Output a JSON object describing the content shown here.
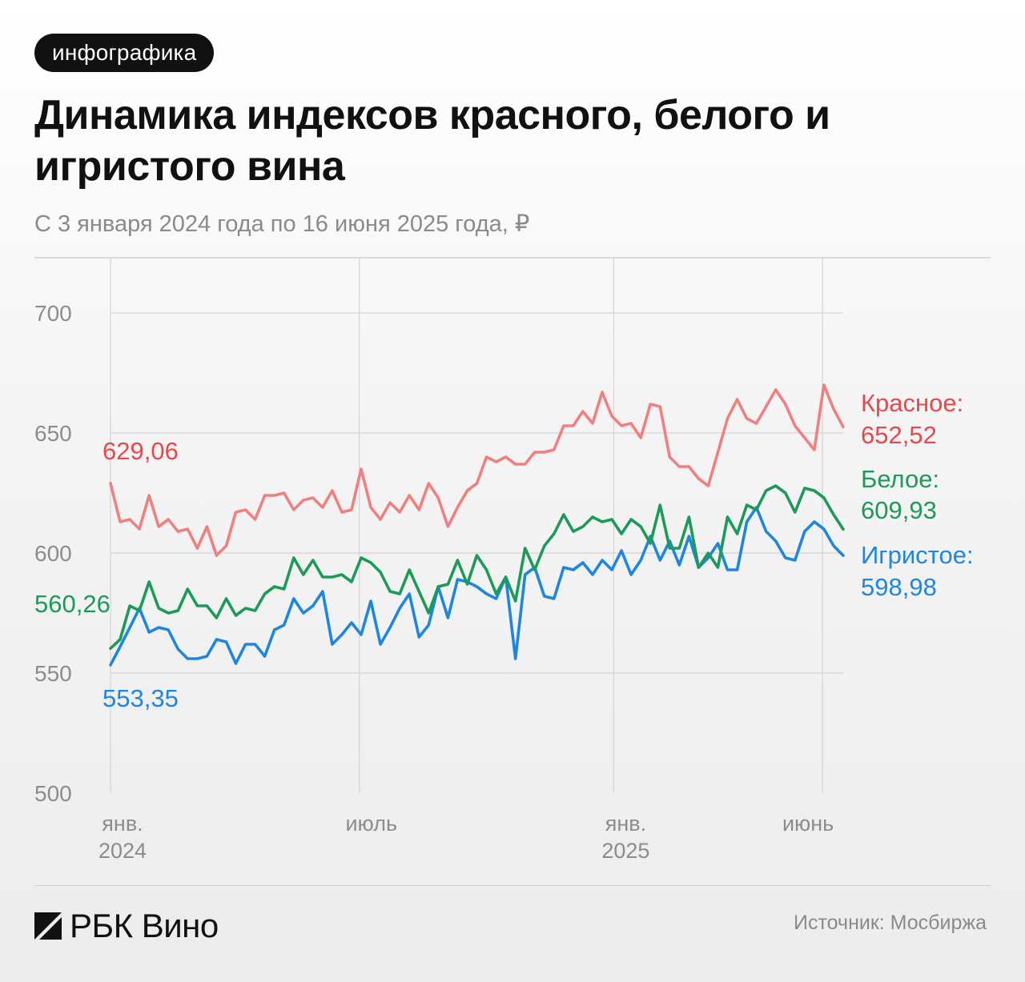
{
  "tag_label": "инфографика",
  "title": "Динамика индексов красного, белого и игристого вина",
  "subtitle": "С 3 января 2024 года по 16 июня 2025 года, ₽",
  "brand": "РБК Вино",
  "source": "Источник: Мосбиржа",
  "chart_data": {
    "type": "line",
    "title": "Динамика индексов красного, белого и игристого вина",
    "xlabel": "",
    "ylabel": "",
    "ylim": [
      500,
      723
    ],
    "yticks": [
      500,
      550,
      600,
      650,
      700
    ],
    "yticklabels": [
      "500",
      "550",
      "600",
      "650",
      "700"
    ],
    "x_range": [
      "2024-01-03",
      "2025-06-16"
    ],
    "x_ticks": [
      {
        "date": "2024-01-01",
        "line1": "янв.",
        "line2": "2024"
      },
      {
        "date": "2024-07-01",
        "line1": "июль",
        "line2": ""
      },
      {
        "date": "2025-01-01",
        "line1": "янв.",
        "line2": "2025"
      },
      {
        "date": "2025-06-01",
        "line1": "июнь",
        "line2": ""
      }
    ],
    "grid": true,
    "series": [
      {
        "name": "Красное",
        "color": "#f08080",
        "label_color": "#e8474c",
        "start_label": "629,06",
        "end_label": "652,52",
        "values": [
          629.06,
          613,
          614,
          610,
          624,
          611,
          614,
          609,
          610,
          602,
          611,
          599,
          603,
          617,
          618,
          614,
          624,
          624,
          625,
          618,
          622,
          623,
          619,
          626,
          617,
          618,
          635,
          619,
          614,
          621,
          617,
          624,
          618,
          629,
          623,
          611,
          619,
          626,
          629,
          640,
          638,
          640,
          637,
          637,
          642,
          642,
          643,
          653,
          653,
          659,
          654,
          667,
          657,
          653,
          654,
          648,
          662,
          661,
          640,
          636,
          636,
          631,
          628,
          642,
          656,
          664,
          656,
          654,
          661,
          668,
          662,
          653,
          648,
          643,
          670,
          660,
          652.52
        ]
      },
      {
        "name": "Белое",
        "color": "#1b9a58",
        "label_color": "#1b9a58",
        "start_label": "560,26",
        "end_label": "609,93",
        "values": [
          560.26,
          564,
          578,
          576,
          588,
          577,
          575,
          576,
          585,
          578,
          578,
          573,
          581,
          574,
          577,
          576,
          583,
          586,
          585,
          598,
          591,
          597,
          590,
          590,
          591,
          588,
          598,
          596,
          592,
          584,
          583,
          593,
          584,
          575,
          586,
          587,
          597,
          587,
          599,
          593,
          583,
          590,
          580,
          602,
          593,
          603,
          608,
          616,
          609,
          611,
          615,
          613,
          614,
          608,
          614,
          611,
          604,
          620,
          602,
          602,
          615,
          594,
          600,
          594,
          615,
          608,
          620,
          618,
          626,
          628,
          625,
          617,
          627,
          626,
          623,
          616,
          609.93
        ]
      },
      {
        "name": "Игристое",
        "color": "#1f86e0",
        "label_color": "#1f86e0",
        "start_label": "553,35",
        "end_label": "598,98",
        "values": [
          553.35,
          561,
          569,
          577,
          567,
          569,
          568,
          560,
          556,
          556,
          557,
          564,
          563,
          554,
          562,
          562,
          557,
          568,
          570,
          581,
          575,
          578,
          584,
          562,
          566,
          571,
          566,
          580,
          562,
          569,
          577,
          583,
          565,
          570,
          586,
          573,
          589,
          588,
          586,
          583,
          581,
          590,
          556,
          591,
          594,
          582,
          581,
          594,
          593,
          596,
          591,
          597,
          593,
          601,
          591,
          597,
          607,
          597,
          605,
          595,
          607,
          594,
          598,
          604,
          593,
          593,
          613,
          619,
          609,
          605,
          598,
          597,
          609,
          613,
          610,
          603,
          598.98
        ]
      }
    ]
  }
}
